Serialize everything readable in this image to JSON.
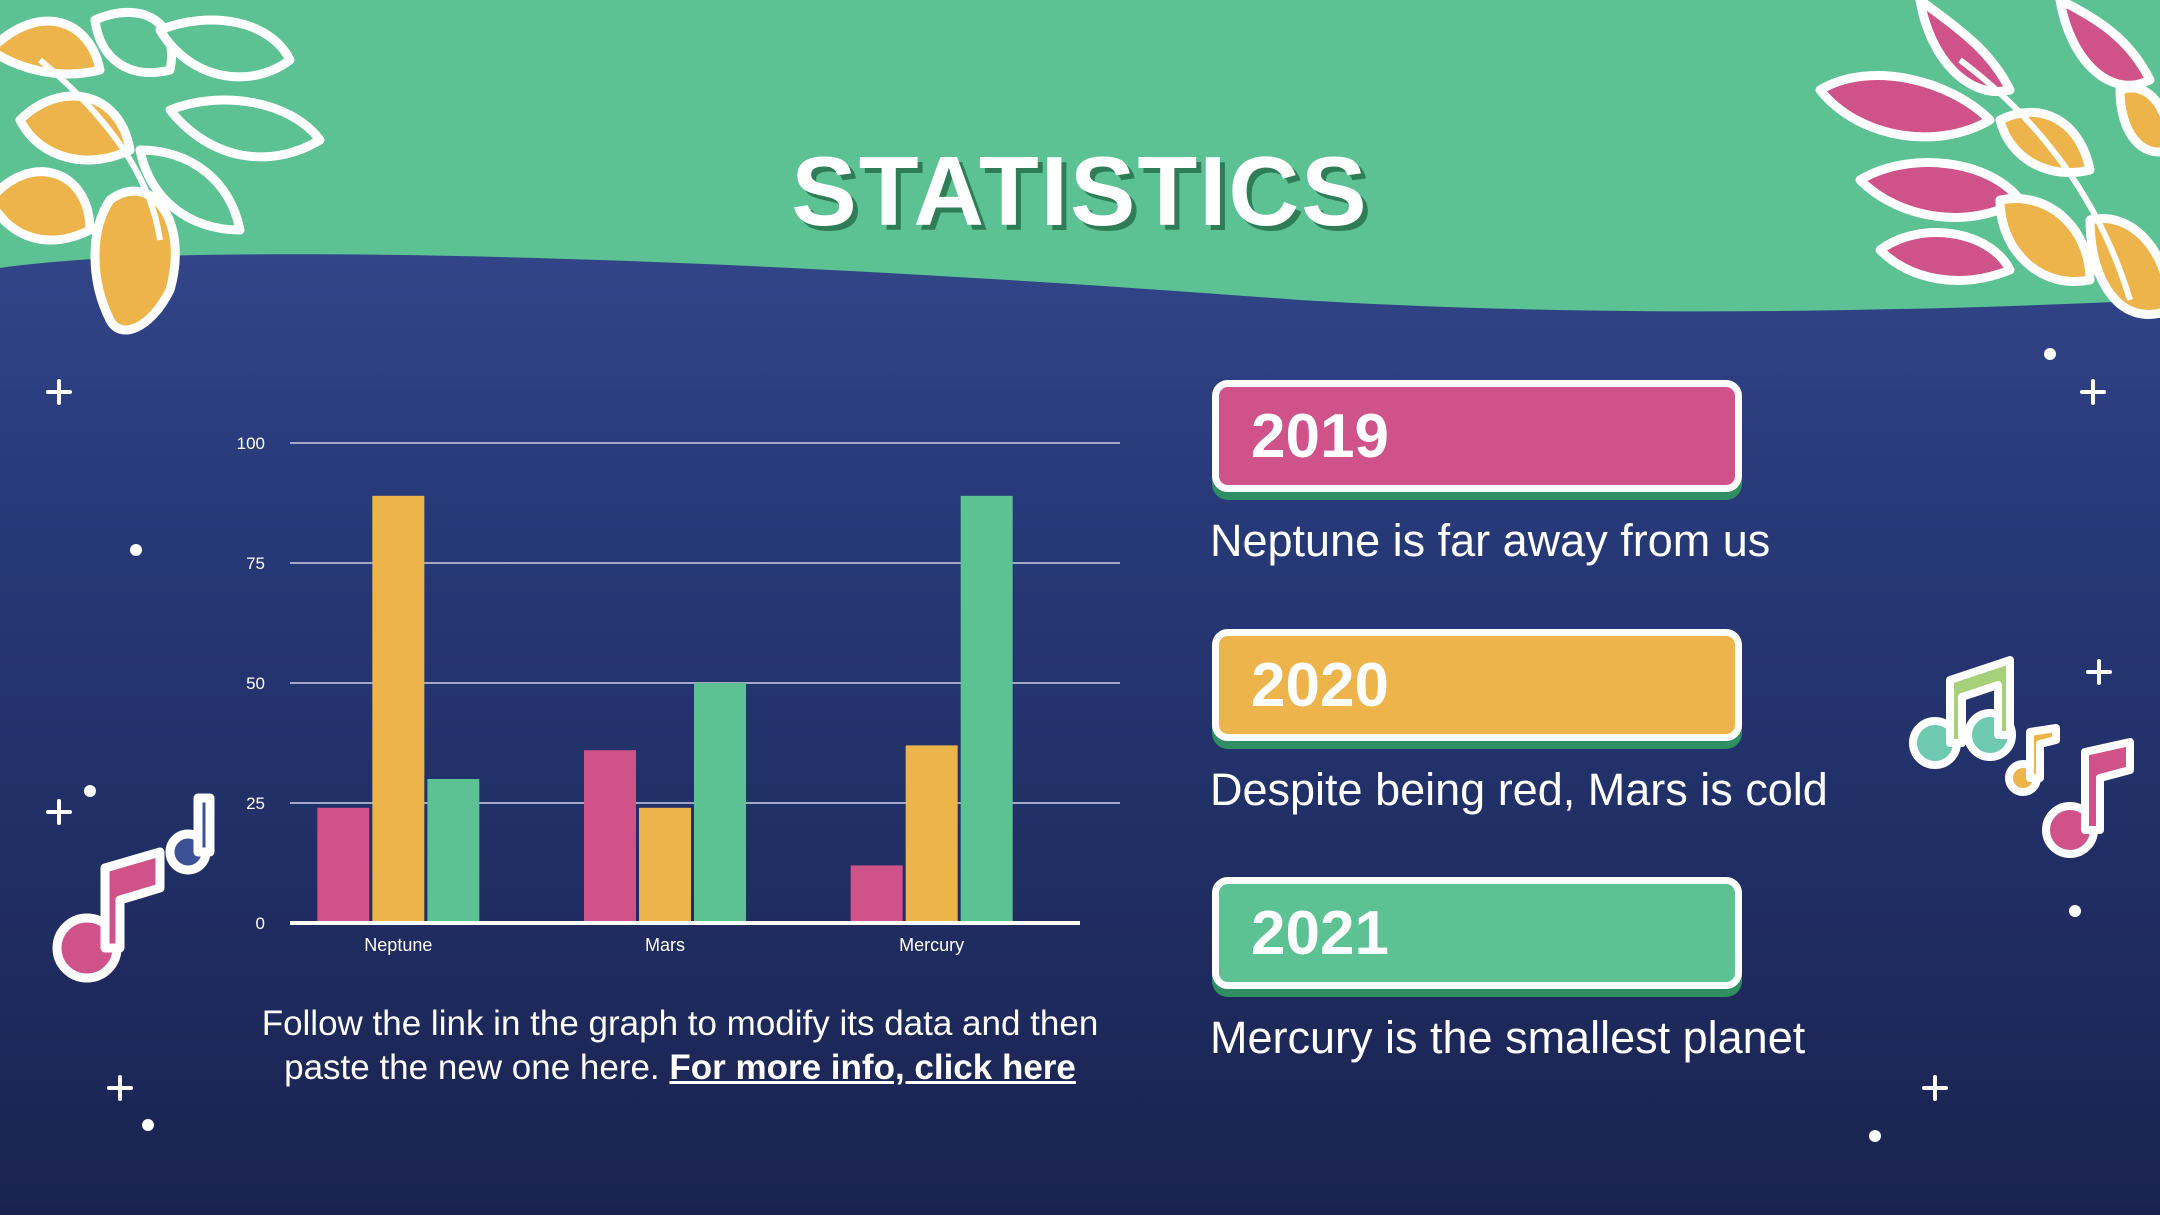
{
  "title": "STATISTICS",
  "colors": {
    "pink": "#cf5289",
    "yellow": "#ecb44a",
    "green": "#5cc193",
    "navy": "#1a2350",
    "white": "#ffffff"
  },
  "chart_data": {
    "type": "bar",
    "categories": [
      "Neptune",
      "Mars",
      "Mercury"
    ],
    "series": [
      {
        "values": [
          24,
          36,
          12
        ],
        "color": "#cf5289"
      },
      {
        "values": [
          89,
          24,
          37
        ],
        "color": "#ecb44a"
      },
      {
        "values": [
          30,
          50,
          89
        ],
        "color": "#5cc193"
      }
    ],
    "ylim": [
      0,
      100
    ],
    "yticks": [
      "0",
      "25",
      "50",
      "75",
      "100"
    ],
    "grid": true
  },
  "caption": {
    "text": "Follow the link in the graph to modify its data and then paste the new one here. ",
    "link": "For more info, click here"
  },
  "highlights": [
    {
      "year": "2019",
      "text": "Neptune is far away from us",
      "color": "#cf5289"
    },
    {
      "year": "2020",
      "text": "Despite being red, Mars is cold",
      "color": "#ecb44a"
    },
    {
      "year": "2021",
      "text": "Mercury is the smallest planet",
      "color": "#5cc193"
    }
  ],
  "decorations": [
    "leaf-cluster-top-left",
    "leaf-cluster-top-right",
    "music-note-icon",
    "sparkle-icon"
  ]
}
